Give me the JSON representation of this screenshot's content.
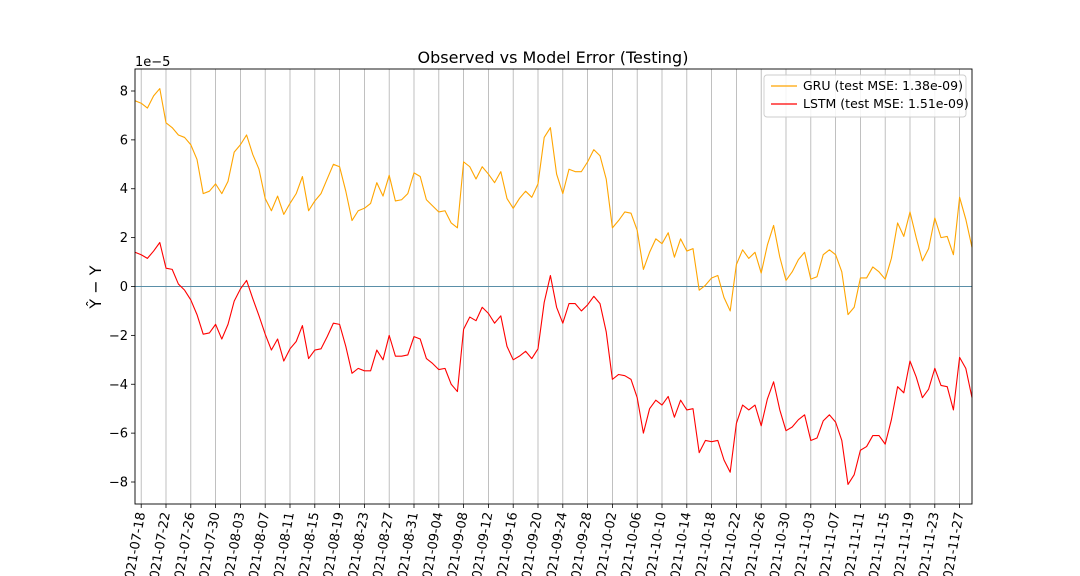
{
  "chart_data": {
    "type": "line",
    "title": "Observed vs Model Error (Testing)",
    "ylabel": "Ŷ − Y",
    "xlabel": "",
    "y_scale_label": "1e−5",
    "y_scale": 1e-05,
    "ylim": [
      -8.9,
      8.9
    ],
    "yticks": [
      -8,
      -6,
      -4,
      -2,
      0,
      2,
      4,
      6,
      8
    ],
    "x_start": "2021-07-17",
    "x_end": "2021-11-29",
    "xticks": [
      "2021-07-18",
      "2021-07-22",
      "2021-07-26",
      "2021-07-30",
      "2021-08-03",
      "2021-08-07",
      "2021-08-11",
      "2021-08-15",
      "2021-08-19",
      "2021-08-23",
      "2021-08-27",
      "2021-08-31",
      "2021-09-04",
      "2021-09-08",
      "2021-09-12",
      "2021-09-16",
      "2021-09-20",
      "2021-09-24",
      "2021-09-28",
      "2021-10-02",
      "2021-10-06",
      "2021-10-10",
      "2021-10-14",
      "2021-10-18",
      "2021-10-22",
      "2021-10-26",
      "2021-10-30",
      "2021-11-03",
      "2021-11-07",
      "2021-11-11",
      "2021-11-15",
      "2021-11-19",
      "2021-11-23",
      "2021-11-27"
    ],
    "grid": "vertical",
    "legend_position": "top-right",
    "zero_line_color": "#5a8fa8",
    "series": [
      {
        "name": "GRU (test MSE: 1.38e-09)",
        "color": "#ffa500",
        "start_date": "2021-07-17",
        "values": [
          7.6,
          7.5,
          7.3,
          7.8,
          8.1,
          6.7,
          6.5,
          6.2,
          6.1,
          5.8,
          5.2,
          3.8,
          3.9,
          4.2,
          3.8,
          4.3,
          5.5,
          5.8,
          6.2,
          5.4,
          4.8,
          3.6,
          3.1,
          3.7,
          2.95,
          3.4,
          3.8,
          4.5,
          3.1,
          3.5,
          3.8,
          4.4,
          5.0,
          4.9,
          3.9,
          2.7,
          3.1,
          3.2,
          3.4,
          4.25,
          3.7,
          4.55,
          3.5,
          3.55,
          3.8,
          4.65,
          4.5,
          3.55,
          3.3,
          3.05,
          3.1,
          2.6,
          2.4,
          5.1,
          4.9,
          4.4,
          4.9,
          4.6,
          4.25,
          4.7,
          3.6,
          3.2,
          3.6,
          3.9,
          3.65,
          4.2,
          6.1,
          6.5,
          4.6,
          3.8,
          4.8,
          4.7,
          4.7,
          5.1,
          5.6,
          5.35,
          4.4,
          2.4,
          2.7,
          3.05,
          3.0,
          2.3,
          0.7,
          1.4,
          1.95,
          1.75,
          2.2,
          1.2,
          1.95,
          1.45,
          1.55,
          -0.15,
          0.05,
          0.35,
          0.45,
          -0.45,
          -1.0,
          0.9,
          1.5,
          1.15,
          1.4,
          0.55,
          1.7,
          2.5,
          1.2,
          0.25,
          0.6,
          1.1,
          1.4,
          0.3,
          0.4,
          1.3,
          1.5,
          1.3,
          0.6,
          -1.15,
          -0.85,
          0.35,
          0.35,
          0.8,
          0.6,
          0.3,
          1.15,
          2.6,
          2.05,
          3.05,
          2.0,
          1.05,
          1.55,
          2.8,
          2.0,
          2.05,
          1.3,
          3.65,
          2.75,
          1.6
        ]
      },
      {
        "name": "LSTM (test MSE: 1.51e-09)",
        "color": "#ff0000",
        "start_date": "2021-07-17",
        "values": [
          1.4,
          1.3,
          1.15,
          1.45,
          1.8,
          0.75,
          0.7,
          0.1,
          -0.15,
          -0.55,
          -1.15,
          -1.95,
          -1.9,
          -1.55,
          -2.15,
          -1.55,
          -0.6,
          -0.1,
          0.25,
          -0.5,
          -1.2,
          -1.95,
          -2.6,
          -2.15,
          -3.05,
          -2.55,
          -2.25,
          -1.6,
          -2.95,
          -2.6,
          -2.55,
          -2.05,
          -1.5,
          -1.55,
          -2.45,
          -3.55,
          -3.35,
          -3.45,
          -3.45,
          -2.6,
          -3.0,
          -2.0,
          -2.85,
          -2.85,
          -2.8,
          -2.05,
          -2.15,
          -2.95,
          -3.15,
          -3.4,
          -3.35,
          -4.0,
          -4.3,
          -1.75,
          -1.25,
          -1.4,
          -0.85,
          -1.1,
          -1.5,
          -1.2,
          -2.45,
          -3.0,
          -2.85,
          -2.65,
          -2.95,
          -2.55,
          -0.65,
          0.45,
          -0.85,
          -1.5,
          -0.7,
          -0.7,
          -1.0,
          -0.75,
          -0.4,
          -0.7,
          -1.85,
          -3.8,
          -3.6,
          -3.65,
          -3.8,
          -4.55,
          -6.0,
          -5.0,
          -4.65,
          -4.85,
          -4.5,
          -5.35,
          -4.65,
          -5.05,
          -5.0,
          -6.8,
          -6.3,
          -6.35,
          -6.3,
          -7.1,
          -7.6,
          -5.6,
          -4.85,
          -5.05,
          -4.85,
          -5.7,
          -4.6,
          -3.9,
          -5.05,
          -5.9,
          -5.75,
          -5.45,
          -5.25,
          -6.3,
          -6.2,
          -5.5,
          -5.25,
          -5.55,
          -6.3,
          -8.1,
          -7.7,
          -6.7,
          -6.55,
          -6.1,
          -6.1,
          -6.45,
          -5.45,
          -4.1,
          -4.35,
          -3.05,
          -3.7,
          -4.55,
          -4.2,
          -3.35,
          -4.05,
          -4.1,
          -5.05,
          -2.9,
          -3.35,
          -4.55
        ]
      }
    ]
  }
}
